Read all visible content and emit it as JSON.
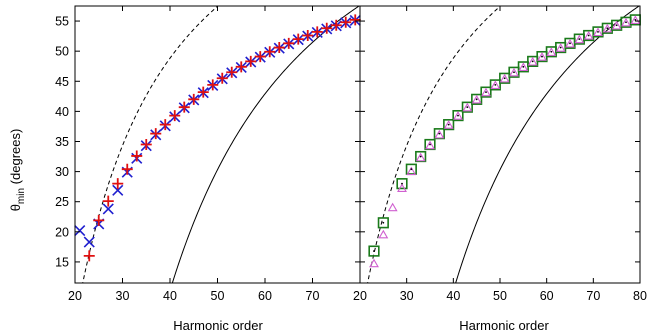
{
  "chart_data": [
    {
      "type": "scatter",
      "panel": "left",
      "xlabel": "Harmonic order",
      "ylabel": "θ",
      "ylabel_sub": "min",
      "ylabel_suffix": " (degrees)",
      "xlim": [
        20,
        80
      ],
      "ylim": [
        11.5,
        57.5
      ],
      "x_ticks": [
        20,
        30,
        40,
        50,
        60,
        70
      ],
      "y_ticks": [
        15,
        20,
        25,
        30,
        35,
        40,
        45,
        50,
        55
      ],
      "grid": false,
      "series": [
        {
          "marker": "x",
          "color": "#1f1fcf",
          "x": [
            21,
            23,
            25,
            27,
            29,
            31,
            33,
            35,
            37,
            39,
            41,
            43,
            45,
            47,
            49,
            51,
            53,
            55,
            57,
            59,
            61,
            63,
            65,
            67,
            69,
            71,
            73,
            75,
            77,
            79
          ],
          "y": [
            20.2,
            18.3,
            21.3,
            23.8,
            26.9,
            29.9,
            32.2,
            34.3,
            36.1,
            37.6,
            39.1,
            40.6,
            41.9,
            43.1,
            44.3,
            45.4,
            46.4,
            47.3,
            48.2,
            49.0,
            49.8,
            50.5,
            51.2,
            51.9,
            52.5,
            53.1,
            53.7,
            54.2,
            54.7,
            55.1
          ]
        },
        {
          "marker": "+",
          "color": "#e01010",
          "x": [
            23,
            25,
            27,
            29,
            31,
            33,
            35,
            37,
            39,
            41,
            43,
            45,
            47,
            49,
            51,
            53,
            55,
            57,
            59,
            61,
            63,
            65,
            67,
            69,
            71,
            73,
            75,
            77,
            79
          ],
          "y": [
            16.0,
            21.9,
            25.1,
            28.0,
            30.4,
            32.6,
            34.5,
            36.3,
            37.8,
            39.3,
            40.7,
            42.0,
            43.2,
            44.4,
            45.5,
            46.5,
            47.4,
            48.3,
            49.1,
            49.9,
            50.6,
            51.3,
            52.0,
            52.6,
            53.2,
            53.8,
            54.3,
            54.8,
            55.2
          ]
        }
      ],
      "curves": [
        {
          "style": "dashed"
        },
        {
          "style": "solid"
        }
      ]
    },
    {
      "type": "scatter",
      "panel": "right",
      "xlabel": "Harmonic order",
      "xlim": [
        20,
        80
      ],
      "ylim": [
        11.5,
        57.5
      ],
      "x_ticks": [
        20,
        30,
        40,
        50,
        60,
        70,
        80
      ],
      "grid": false,
      "series": [
        {
          "marker": "open-square",
          "color": "#1a7a1a",
          "x": [
            23,
            25,
            29,
            31,
            33,
            35,
            37,
            39,
            41,
            43,
            45,
            47,
            49,
            51,
            53,
            55,
            57,
            59,
            61,
            63,
            65,
            67,
            69,
            71,
            73,
            75,
            77,
            79
          ],
          "y": [
            16.8,
            21.5,
            28.0,
            30.4,
            32.5,
            34.5,
            36.3,
            37.8,
            39.3,
            40.7,
            42.0,
            43.2,
            44.4,
            45.5,
            46.5,
            47.4,
            48.3,
            49.1,
            49.9,
            50.6,
            51.3,
            52.0,
            52.6,
            53.2,
            53.8,
            54.3,
            54.8,
            55.2
          ]
        },
        {
          "marker": "open-triangle",
          "color": "#d060d0",
          "x": [
            23,
            25,
            27,
            29,
            31,
            33,
            35,
            37,
            39,
            41,
            43,
            45,
            47,
            49,
            51,
            53,
            55,
            57,
            59,
            61,
            63,
            65,
            67,
            69,
            71,
            73,
            75,
            77,
            79
          ],
          "y": [
            14.7,
            19.5,
            24.0,
            27.2,
            30.0,
            32.3,
            34.3,
            36.1,
            37.7,
            39.2,
            40.6,
            41.9,
            43.1,
            44.3,
            45.4,
            46.4,
            47.3,
            48.2,
            49.0,
            49.8,
            50.5,
            51.2,
            51.9,
            52.5,
            53.1,
            53.7,
            54.2,
            54.7,
            55.1
          ]
        },
        {
          "marker": "dot",
          "color": "#000000",
          "x": [
            23,
            25,
            29,
            31,
            33,
            35,
            37,
            39,
            41,
            43,
            45,
            47,
            49,
            51,
            53,
            55,
            57,
            59,
            61,
            63,
            65,
            67,
            69,
            71,
            73,
            75,
            77,
            79
          ],
          "y": [
            16.8,
            21.5,
            28.0,
            30.4,
            32.5,
            34.5,
            36.3,
            37.8,
            39.3,
            40.7,
            42.0,
            43.2,
            44.4,
            45.5,
            46.5,
            47.4,
            48.3,
            49.1,
            49.9,
            50.6,
            51.3,
            52.0,
            52.6,
            53.2,
            53.8,
            54.3,
            54.8,
            55.2
          ]
        }
      ],
      "curves": [
        {
          "style": "dashed"
        },
        {
          "style": "solid"
        }
      ]
    }
  ]
}
